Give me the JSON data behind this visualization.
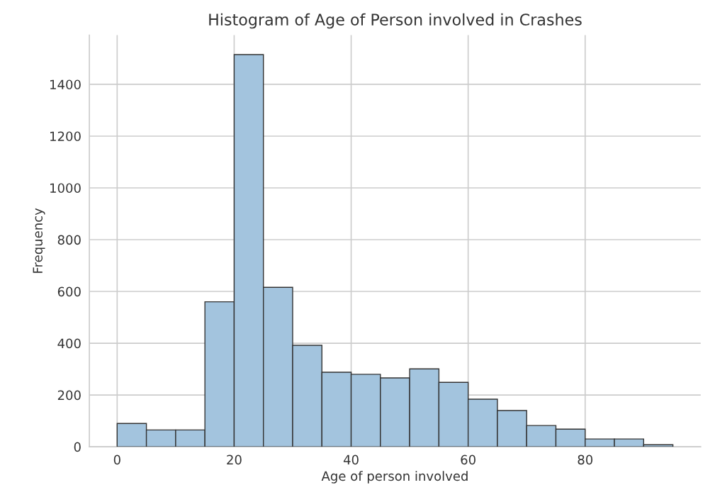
{
  "chart_data": {
    "type": "histogram",
    "title": "Histogram of Age of Person involved in Crashes",
    "xlabel": "Age of person involved",
    "ylabel": "Frequency",
    "bins": [
      0,
      5,
      10,
      15,
      20,
      25,
      30,
      35,
      40,
      45,
      50,
      55,
      60,
      65,
      70,
      75,
      80,
      85,
      90,
      95
    ],
    "values": [
      90,
      65,
      65,
      560,
      1515,
      616,
      392,
      288,
      280,
      266,
      301,
      249,
      184,
      140,
      82,
      68,
      30,
      30,
      8
    ],
    "color": "#a3c4de",
    "xlim": [
      -4.75,
      99.75
    ],
    "ylim": [
      0,
      1590
    ],
    "xticks": [
      0,
      20,
      40,
      60,
      80
    ],
    "yticks": [
      0,
      200,
      400,
      600,
      800,
      1000,
      1200,
      1400
    ],
    "grid": true
  }
}
